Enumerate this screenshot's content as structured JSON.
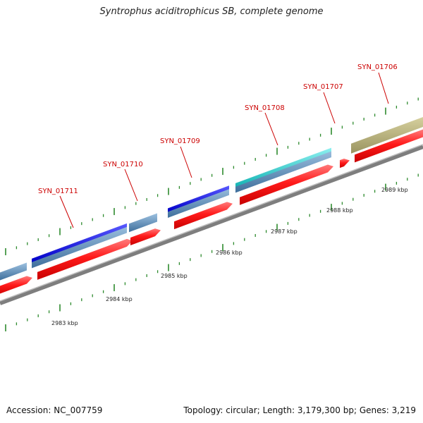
{
  "title": "Syntrophus aciditrophicus SB, complete genome",
  "footer": {
    "accession_label": "Accession:",
    "accession_value": "NC_007759",
    "topology_label": "Topology:",
    "topology_value": "circular",
    "length_label": "Length:",
    "length_value": "3,179,300 bp",
    "genes_label": "Genes:",
    "genes_value": "3,219"
  },
  "colors": {
    "cds_forward": "#ff0000",
    "gene_forward_dark": "#4682b4",
    "gene_blue": "#0000ee",
    "gene_cyan": "#20c8c8",
    "gene_olive": "#b4ae78",
    "backbone": "#8c8c8c",
    "ticks": "#2e8b2e",
    "label_red": "#cc0000"
  },
  "position_labels": [
    {
      "text": "2983 kbp"
    },
    {
      "text": "2984 kbp"
    },
    {
      "text": "2985 kbp"
    },
    {
      "text": "2986 kbp"
    },
    {
      "text": "2987 kbp"
    },
    {
      "text": "2988 kbp"
    },
    {
      "text": "2989 kbp"
    }
  ],
  "gene_labels": [
    {
      "text": "SYN_01711"
    },
    {
      "text": "SYN_01710"
    },
    {
      "text": "SYN_01709"
    },
    {
      "text": "SYN_01708"
    },
    {
      "text": "SYN_01707"
    },
    {
      "text": "SYN_01706"
    }
  ]
}
